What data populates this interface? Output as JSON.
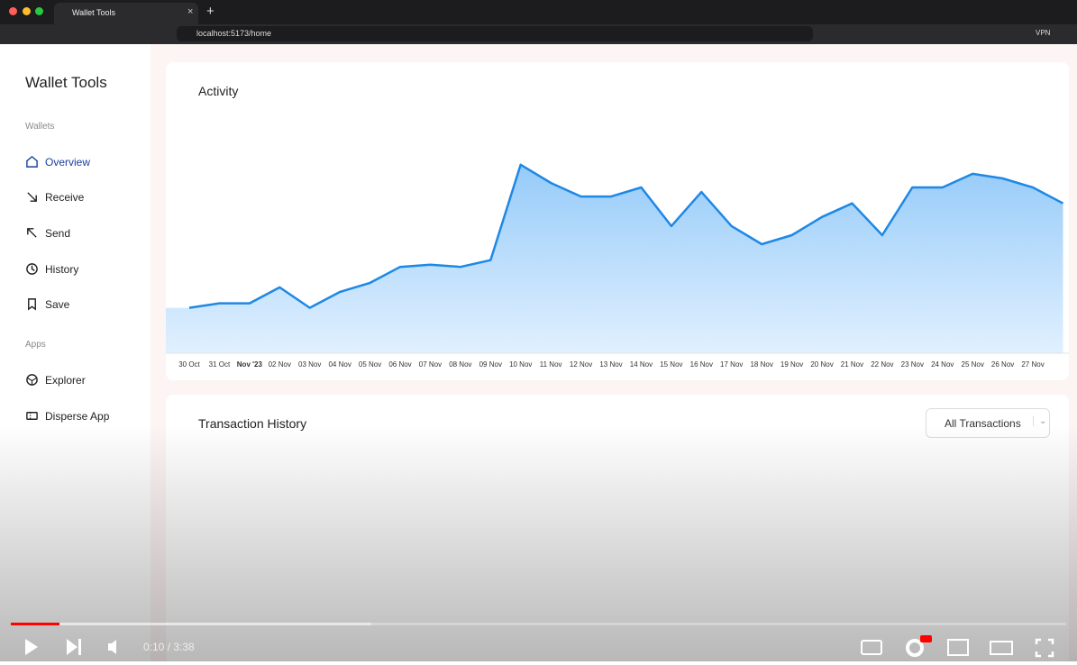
{
  "browser": {
    "tab_title": "Wallet Tools",
    "url": "localhost:5173/home",
    "vpn": "VPN"
  },
  "sidebar": {
    "app_title": "Wallet Tools",
    "wallets_heading": "Wallets",
    "wallet_items": [
      "Overview",
      "Receive",
      "Send",
      "History",
      "Save"
    ],
    "apps_heading": "Apps",
    "app_items": [
      "Explorer",
      "Disperse App"
    ]
  },
  "activity": {
    "title": "Activity"
  },
  "chart_data": {
    "type": "area",
    "color": "#1e88e5",
    "categories": [
      "30 Oct",
      "31 Oct",
      "Nov '23",
      "02 Nov",
      "03 Nov",
      "04 Nov",
      "05 Nov",
      "06 Nov",
      "07 Nov",
      "08 Nov",
      "09 Nov",
      "10 Nov",
      "11 Nov",
      "12 Nov",
      "13 Nov",
      "14 Nov",
      "15 Nov",
      "16 Nov",
      "17 Nov",
      "18 Nov",
      "19 Nov",
      "20 Nov",
      "21 Nov",
      "22 Nov",
      "23 Nov",
      "24 Nov",
      "25 Nov",
      "26 Nov",
      "27 Nov",
      null
    ],
    "values": [
      20,
      22,
      22,
      29,
      20,
      27,
      31,
      38,
      39,
      38,
      41,
      83,
      75,
      69,
      69,
      73,
      56,
      71,
      56,
      48,
      52,
      60,
      66,
      52,
      73,
      73,
      79,
      77,
      73,
      66
    ],
    "ylim": [
      0,
      100
    ]
  },
  "transactions": {
    "title": "Transaction History",
    "filter": "All Transactions"
  },
  "player": {
    "time": "0:10 / 3:38"
  }
}
